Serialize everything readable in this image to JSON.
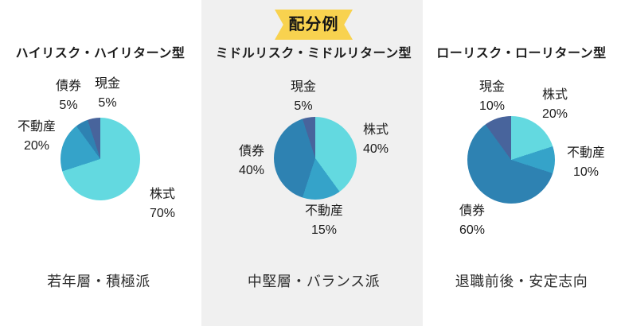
{
  "badge": {
    "label": "配分例",
    "bg_color": "#F8D24F",
    "text_color": "#151515"
  },
  "palette": {
    "stocks": "#63D9E0",
    "realestate": "#35A3C9",
    "bonds": "#2E82B2",
    "cash": "#48649C"
  },
  "chart_data": [
    {
      "type": "pie",
      "title": "ハイリスク・ハイリターン型",
      "caption": "若年層・積極派",
      "start_angle_deg": 0,
      "direction": "clockwise",
      "legend": "none",
      "segments": [
        {
          "key": "stocks",
          "label": "株式",
          "value": 70,
          "value_text": "70%",
          "color": "#63D9E0"
        },
        {
          "key": "realestate",
          "label": "不動産",
          "value": 20,
          "value_text": "20%",
          "color": "#35A3C9"
        },
        {
          "key": "bonds",
          "label": "債券",
          "value": 5,
          "value_text": "5%",
          "color": "#2E82B2"
        },
        {
          "key": "cash",
          "label": "現金",
          "value": 5,
          "value_text": "5%",
          "color": "#48649C"
        }
      ]
    },
    {
      "type": "pie",
      "title": "ミドルリスク・ミドルリターン型",
      "caption": "中堅層・バランス派",
      "start_angle_deg": 0,
      "direction": "clockwise",
      "legend": "none",
      "segments": [
        {
          "key": "stocks",
          "label": "株式",
          "value": 40,
          "value_text": "40%",
          "color": "#63D9E0"
        },
        {
          "key": "realestate",
          "label": "不動産",
          "value": 15,
          "value_text": "15%",
          "color": "#35A3C9"
        },
        {
          "key": "bonds",
          "label": "債券",
          "value": 40,
          "value_text": "40%",
          "color": "#2E82B2"
        },
        {
          "key": "cash",
          "label": "現金",
          "value": 5,
          "value_text": "5%",
          "color": "#48649C"
        }
      ]
    },
    {
      "type": "pie",
      "title": "ローリスク・ローリターン型",
      "caption": "退職前後・安定志向",
      "start_angle_deg": 0,
      "direction": "clockwise",
      "legend": "none",
      "segments": [
        {
          "key": "stocks",
          "label": "株式",
          "value": 20,
          "value_text": "20%",
          "color": "#63D9E0"
        },
        {
          "key": "realestate",
          "label": "不動産",
          "value": 10,
          "value_text": "10%",
          "color": "#35A3C9"
        },
        {
          "key": "bonds",
          "label": "債券",
          "value": 60,
          "value_text": "60%",
          "color": "#2E82B2"
        },
        {
          "key": "cash",
          "label": "現金",
          "value": 10,
          "value_text": "10%",
          "color": "#48649C"
        }
      ]
    }
  ],
  "background": {
    "page": "#FFFFFF",
    "highlight_band": "#F0F0F0"
  }
}
